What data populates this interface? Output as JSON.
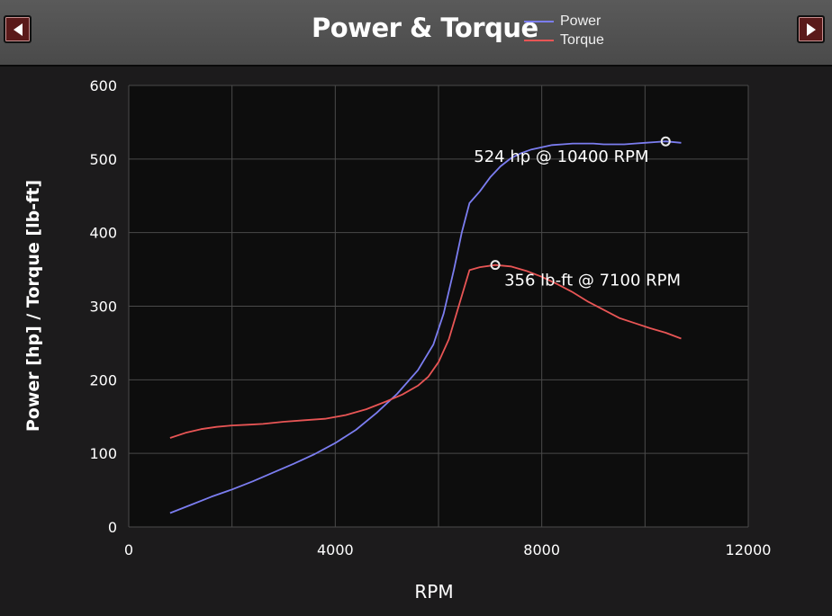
{
  "header": {
    "title": "Power & Torque",
    "prev_icon": "left-triangle-icon",
    "next_icon": "right-triangle-icon"
  },
  "colors": {
    "power": "#7b7df0",
    "torque": "#e85555",
    "plot_bg": "#0d0d0d",
    "grid": "#4a4a4a",
    "nav_button": "#5a1a1a"
  },
  "chart_data": {
    "type": "line",
    "title": "Power & Torque",
    "xlabel": "RPM",
    "ylabel": "Power [hp] / Torque [lb-ft]",
    "xlim": [
      0,
      12000
    ],
    "ylim": [
      0,
      600
    ],
    "xticks": [
      "0",
      "4000",
      "8000",
      "12000"
    ],
    "yticks": [
      "0",
      "100",
      "200",
      "300",
      "400",
      "500",
      "600"
    ],
    "grid": true,
    "legend_position": "top",
    "series": [
      {
        "name": "Power",
        "color": "#7b7df0",
        "x": [
          800,
          1200,
          1600,
          2000,
          2400,
          2800,
          3200,
          3600,
          4000,
          4400,
          4800,
          5200,
          5600,
          5900,
          6100,
          6300,
          6450,
          6600,
          6800,
          7000,
          7200,
          7400,
          7600,
          7800,
          8000,
          8200,
          8400,
          8600,
          8800,
          9000,
          9200,
          9400,
          9600,
          9800,
          10000,
          10200,
          10400,
          10700
        ],
        "y": [
          19,
          30,
          41,
          51,
          62,
          74,
          86,
          99,
          114,
          132,
          155,
          181,
          213,
          248,
          290,
          350,
          400,
          440,
          456,
          475,
          490,
          501,
          508,
          513,
          516,
          519,
          520,
          521,
          521,
          521,
          520,
          520,
          520,
          521,
          522,
          523,
          524,
          522
        ]
      },
      {
        "name": "Torque",
        "color": "#e85555",
        "x": [
          800,
          1100,
          1400,
          1700,
          2000,
          2300,
          2600,
          3000,
          3400,
          3800,
          4200,
          4600,
          5000,
          5300,
          5600,
          5800,
          6000,
          6200,
          6400,
          6600,
          6800,
          7100,
          7400,
          7700,
          8000,
          8300,
          8600,
          8900,
          9200,
          9500,
          9800,
          10100,
          10400,
          10700
        ],
        "y": [
          121,
          128,
          133,
          136,
          138,
          139,
          140,
          143,
          145,
          147,
          152,
          160,
          171,
          180,
          192,
          204,
          224,
          255,
          302,
          349,
          353,
          356,
          354,
          348,
          340,
          330,
          319,
          306,
          295,
          284,
          277,
          270,
          264,
          256
        ]
      }
    ],
    "annotations": [
      {
        "text": "524 hp @ 10400 RPM",
        "x": 10400,
        "y": 524,
        "series": "Power"
      },
      {
        "text": "356 lb-ft @ 7100 RPM",
        "x": 7100,
        "y": 356,
        "series": "Torque"
      }
    ]
  }
}
